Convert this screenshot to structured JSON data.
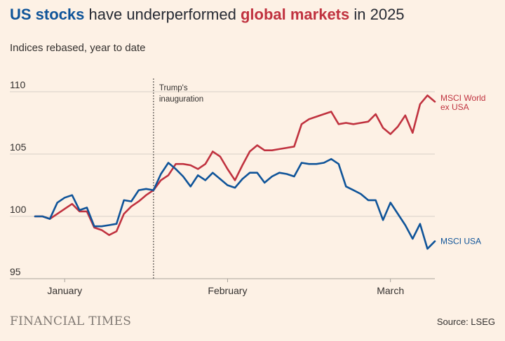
{
  "header": {
    "title_part1": "US stocks",
    "title_part2": " have underperformed ",
    "title_part3": "global markets",
    "title_part4": " in 2025",
    "subtitle": "Indices rebased, year to date"
  },
  "footer": {
    "brand": "FINANCIAL TIMES",
    "source": "Source: LSEG"
  },
  "colors": {
    "background": "#fdf1e5",
    "us": "#0f5499",
    "world": "#c0323f",
    "grid": "#d8cfc6",
    "text": "#33302e"
  },
  "chart_data": {
    "type": "line",
    "title": "US stocks have underperformed global markets in 2025",
    "subtitle": "Indices rebased, year to date",
    "ylim": [
      95,
      111
    ],
    "yticks": [
      95,
      100,
      105,
      110
    ],
    "xlim": [
      0,
      53
    ],
    "xticks": [
      {
        "label": "January",
        "x": 4
      },
      {
        "label": "February",
        "x": 26
      },
      {
        "label": "March",
        "x": 48
      }
    ],
    "grid": true,
    "annotation": {
      "text_line1": "Trump's",
      "text_line2": "inauguration",
      "x": 16
    },
    "series": [
      {
        "name": "MSCI World ex USA",
        "label_line1": "MSCI World",
        "label_line2": "ex USA",
        "color": "#c0323f",
        "points": [
          [
            0,
            100
          ],
          [
            1,
            100
          ],
          [
            2,
            99.8
          ],
          [
            3,
            100.2
          ],
          [
            4,
            100.6
          ],
          [
            5,
            101
          ],
          [
            6,
            100.4
          ],
          [
            7,
            100.4
          ],
          [
            8,
            99.1
          ],
          [
            9,
            98.9
          ],
          [
            10,
            98.5
          ],
          [
            11,
            98.8
          ],
          [
            12,
            100.2
          ],
          [
            13,
            100.8
          ],
          [
            14,
            101.2
          ],
          [
            15,
            101.7
          ],
          [
            16,
            102.1
          ],
          [
            17,
            102.9
          ],
          [
            18,
            103.3
          ],
          [
            19,
            104.2
          ],
          [
            20,
            104.2
          ],
          [
            21,
            104.1
          ],
          [
            22,
            103.8
          ],
          [
            23,
            104.2
          ],
          [
            24,
            105.2
          ],
          [
            25,
            104.8
          ],
          [
            26,
            103.8
          ],
          [
            27,
            102.9
          ],
          [
            28,
            104.1
          ],
          [
            29,
            105.2
          ],
          [
            30,
            105.7
          ],
          [
            31,
            105.3
          ],
          [
            32,
            105.3
          ],
          [
            33,
            105.4
          ],
          [
            34,
            105.5
          ],
          [
            35,
            105.6
          ],
          [
            36,
            107.4
          ],
          [
            37,
            107.8
          ],
          [
            38,
            108
          ],
          [
            39,
            108.2
          ],
          [
            40,
            108.4
          ],
          [
            41,
            107.4
          ],
          [
            42,
            107.5
          ],
          [
            43,
            107.4
          ],
          [
            44,
            107.5
          ],
          [
            45,
            107.6
          ],
          [
            46,
            108.2
          ],
          [
            47,
            107.1
          ],
          [
            48,
            106.6
          ],
          [
            49,
            107.2
          ],
          [
            50,
            108.1
          ],
          [
            51,
            106.7
          ],
          [
            52,
            109
          ],
          [
            53,
            109.7
          ],
          [
            54,
            109.2
          ]
        ]
      },
      {
        "name": "MSCI USA",
        "label_line1": "MSCI USA",
        "label_line2": "",
        "color": "#0f5499",
        "points": [
          [
            0,
            100
          ],
          [
            1,
            100
          ],
          [
            2,
            99.8
          ],
          [
            3,
            101.1
          ],
          [
            4,
            101.5
          ],
          [
            5,
            101.7
          ],
          [
            6,
            100.5
          ],
          [
            7,
            100.7
          ],
          [
            8,
            99.2
          ],
          [
            9,
            99.2
          ],
          [
            10,
            99.3
          ],
          [
            11,
            99.4
          ],
          [
            12,
            101.3
          ],
          [
            13,
            101.2
          ],
          [
            14,
            102.1
          ],
          [
            15,
            102.2
          ],
          [
            16,
            102.1
          ],
          [
            17,
            103.4
          ],
          [
            18,
            104.3
          ],
          [
            19,
            103.8
          ],
          [
            20,
            103.2
          ],
          [
            21,
            102.4
          ],
          [
            22,
            103.3
          ],
          [
            23,
            102.9
          ],
          [
            24,
            103.5
          ],
          [
            25,
            103
          ],
          [
            26,
            102.5
          ],
          [
            27,
            102.3
          ],
          [
            28,
            103
          ],
          [
            29,
            103.5
          ],
          [
            30,
            103.5
          ],
          [
            31,
            102.7
          ],
          [
            32,
            103.2
          ],
          [
            33,
            103.5
          ],
          [
            34,
            103.4
          ],
          [
            35,
            103.2
          ],
          [
            36,
            104.3
          ],
          [
            37,
            104.2
          ],
          [
            38,
            104.2
          ],
          [
            39,
            104.3
          ],
          [
            40,
            104.6
          ],
          [
            41,
            104.2
          ],
          [
            42,
            102.4
          ],
          [
            43,
            102.1
          ],
          [
            44,
            101.8
          ],
          [
            45,
            101.3
          ],
          [
            46,
            101.3
          ],
          [
            47,
            99.7
          ],
          [
            48,
            101.1
          ],
          [
            49,
            100.2
          ],
          [
            50,
            99.3
          ],
          [
            51,
            98.2
          ],
          [
            52,
            99.4
          ],
          [
            53,
            97.4
          ],
          [
            54,
            98
          ]
        ]
      }
    ]
  }
}
